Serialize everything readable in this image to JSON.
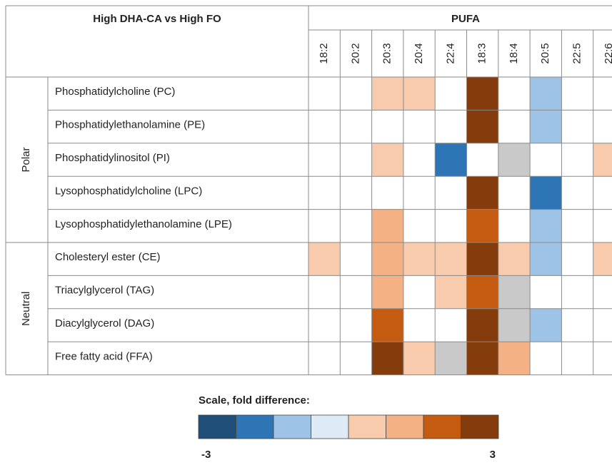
{
  "header": {
    "title": "High DHA-CA vs High FO",
    "group_title": "PUFA",
    "columns": [
      "18:2",
      "20:2",
      "20:3",
      "20:4",
      "22:4",
      "18:3",
      "18:4",
      "20:5",
      "22:5",
      "22:6"
    ]
  },
  "groups": [
    {
      "label": "Polar",
      "rows": [
        {
          "name": "Phosphatidylcholine (PC)",
          "cells": [
            null,
            null,
            "#f8cbad",
            "#f8cbad",
            null,
            "#843c0c",
            null,
            "#9dc3e6",
            null,
            null
          ]
        },
        {
          "name": "Phosphatidylethanolamine (PE)",
          "cells": [
            null,
            null,
            null,
            null,
            null,
            "#843c0c",
            null,
            "#9dc3e6",
            null,
            null
          ]
        },
        {
          "name": "Phosphatidylinositol (PI)",
          "cells": [
            null,
            null,
            "#f8cbad",
            null,
            "#2e75b6",
            null,
            "#c9c9c9",
            null,
            null,
            "#f8cbad"
          ]
        },
        {
          "name": "Lysophosphatidylcholine (LPC)",
          "cells": [
            null,
            null,
            null,
            null,
            null,
            "#843c0c",
            null,
            "#2e75b6",
            null,
            null
          ]
        },
        {
          "name": "Lysophosphatidylethanolamine (LPE)",
          "cells": [
            null,
            null,
            "#f4b183",
            null,
            null,
            "#c55a11",
            null,
            "#9dc3e6",
            null,
            null
          ]
        }
      ]
    },
    {
      "label": "Neutral",
      "rows": [
        {
          "name": "Cholesteryl ester (CE)",
          "cells": [
            "#f8cbad",
            null,
            "#f4b183",
            "#f8cbad",
            "#f8cbad",
            "#843c0c",
            "#f8cbad",
            "#9dc3e6",
            null,
            "#f8cbad"
          ]
        },
        {
          "name": "Triacylglycerol (TAG)",
          "cells": [
            null,
            null,
            "#f4b183",
            null,
            "#f8cbad",
            "#c55a11",
            "#c9c9c9",
            null,
            null,
            null
          ]
        },
        {
          "name": "Diacylglycerol (DAG)",
          "cells": [
            null,
            null,
            "#c55a11",
            null,
            null,
            "#843c0c",
            "#c9c9c9",
            "#9dc3e6",
            null,
            null
          ]
        },
        {
          "name": "Free fatty acid (FFA)",
          "cells": [
            null,
            null,
            "#843c0c",
            "#f8cbad",
            "#c9c9c9",
            "#843c0c",
            "#f4b183",
            null,
            null,
            null
          ]
        }
      ]
    }
  ],
  "scale": {
    "title": "Scale, fold difference:",
    "colors": [
      "#1f4e79",
      "#2e75b6",
      "#9dc3e6",
      "#deebf7",
      "#f8cbad",
      "#f4b183",
      "#c55a11",
      "#843c0c"
    ],
    "min_label": "-3",
    "max_label": "3"
  }
}
